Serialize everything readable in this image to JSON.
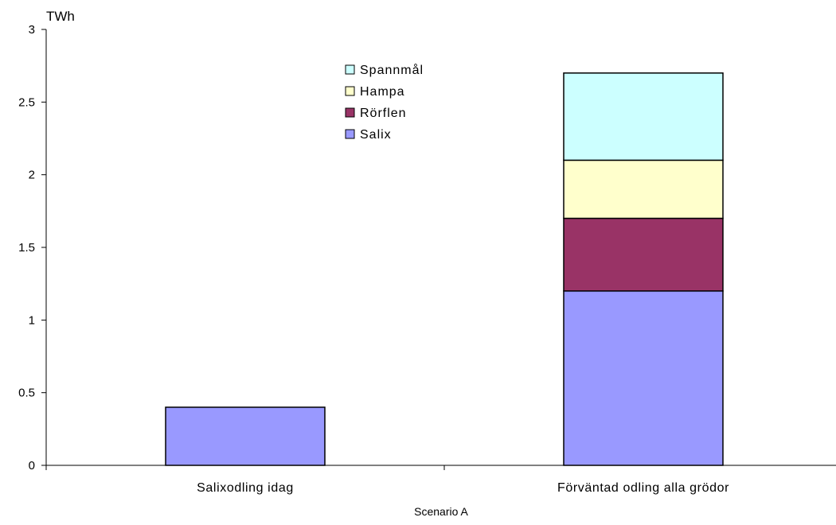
{
  "chart_data": {
    "type": "bar",
    "stacked": true,
    "ylabel": "TWh",
    "xlabel": "Scenario A",
    "categories": [
      "Salixodling idag",
      "Förväntad odling alla grödor"
    ],
    "ylim": [
      0,
      3
    ],
    "yticks": [
      "0",
      "0.5",
      "1",
      "1.5",
      "2",
      "2.5",
      "3"
    ],
    "grid": false,
    "legend_position": "top-center",
    "series": [
      {
        "name": "Salix",
        "color": "#9999ff",
        "values": [
          0.4,
          1.2
        ]
      },
      {
        "name": "Rörflen",
        "color": "#993366",
        "values": [
          0,
          0.5
        ]
      },
      {
        "name": "Hampa",
        "color": "#ffffcc",
        "values": [
          0,
          0.4
        ]
      },
      {
        "name": "Spannmål",
        "color": "#ccffff",
        "values": [
          0,
          0.6
        ]
      }
    ]
  }
}
